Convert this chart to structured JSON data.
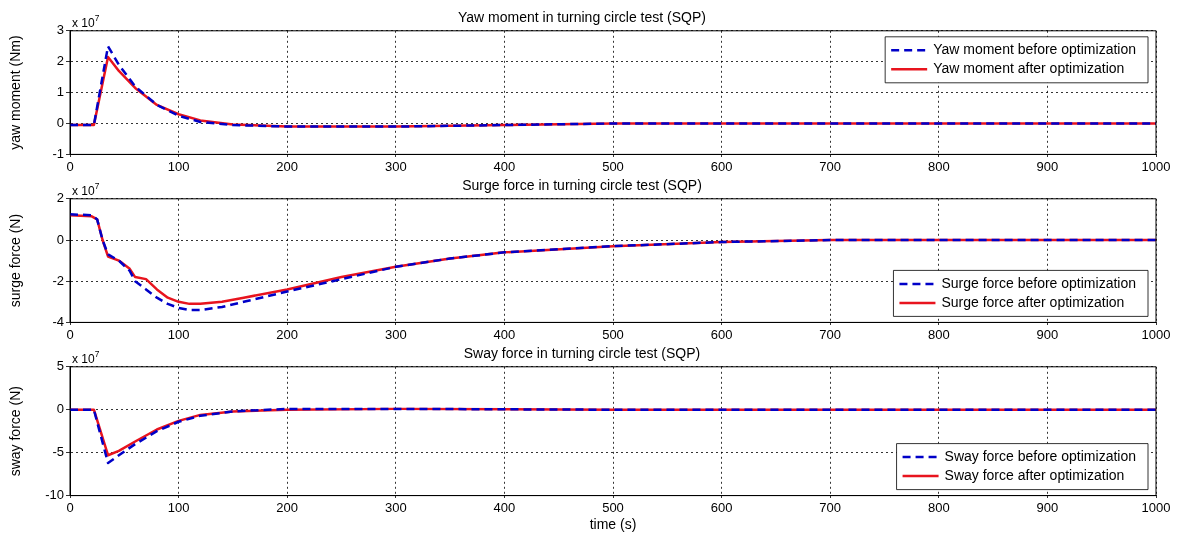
{
  "chart_data": [
    {
      "type": "line",
      "title": "Yaw moment in turning circle test (SQP)",
      "ylabel": "yaw moment (Nm)",
      "annotations": [
        "x 10$^{7}$"
      ],
      "xlim": [
        0,
        1000
      ],
      "xticks": [
        0,
        100,
        200,
        300,
        400,
        500,
        600,
        700,
        800,
        900,
        1000
      ],
      "ylim": [
        -1,
        3
      ],
      "yticks": [
        -1,
        0,
        1,
        2,
        3
      ],
      "grid": true,
      "legend": "top right",
      "series": [
        {
          "name": "Yaw moment before optimization",
          "color": "#0000c8",
          "line_style": "dashed",
          "x": [
            0,
            22,
            35,
            45,
            60,
            80,
            100,
            120,
            150,
            200,
            300,
            400,
            500,
            1000
          ],
          "values": [
            -0.05,
            -0.05,
            2.5,
            1.9,
            1.2,
            0.6,
            0.25,
            0.05,
            -0.05,
            -0.1,
            -0.1,
            -0.05,
            0,
            0
          ]
        },
        {
          "name": "Yaw moment after optimization",
          "color": "#e8141e",
          "line_style": "solid",
          "x": [
            0,
            22,
            35,
            45,
            60,
            80,
            100,
            120,
            150,
            200,
            300,
            400,
            500,
            1000
          ],
          "values": [
            -0.05,
            -0.05,
            2.15,
            1.7,
            1.15,
            0.6,
            0.3,
            0.1,
            -0.03,
            -0.1,
            -0.1,
            -0.05,
            0,
            0
          ]
        }
      ]
    },
    {
      "type": "line",
      "title": "Surge force in turning circle test (SQP)",
      "ylabel": "surge force (N)",
      "annotations": [
        "x 10$^{7}$"
      ],
      "xlim": [
        0,
        1000
      ],
      "xticks": [
        0,
        100,
        200,
        300,
        400,
        500,
        600,
        700,
        800,
        900,
        1000
      ],
      "ylim": [
        -4,
        2
      ],
      "yticks": [
        -4,
        -2,
        0,
        2
      ],
      "grid": true,
      "legend": "bottom right",
      "series": [
        {
          "name": "Surge force before optimization",
          "color": "#0000c8",
          "line_style": "dashed",
          "x": [
            0,
            20,
            25,
            30,
            35,
            45,
            55,
            60,
            70,
            80,
            90,
            100,
            110,
            120,
            140,
            160,
            200,
            250,
            300,
            350,
            400,
            500,
            600,
            700,
            800,
            1000
          ],
          "values": [
            1.25,
            1.2,
            1.0,
            0,
            -0.7,
            -1.0,
            -1.5,
            -2.0,
            -2.4,
            -2.8,
            -3.1,
            -3.3,
            -3.4,
            -3.4,
            -3.25,
            -3.0,
            -2.5,
            -1.9,
            -1.3,
            -0.9,
            -0.6,
            -0.3,
            -0.1,
            0,
            0,
            0
          ]
        },
        {
          "name": "Surge force after optimization",
          "color": "#e8141e",
          "line_style": "solid",
          "x": [
            0,
            20,
            25,
            30,
            35,
            45,
            55,
            60,
            70,
            80,
            90,
            100,
            110,
            120,
            140,
            160,
            200,
            250,
            300,
            350,
            400,
            500,
            600,
            700,
            800,
            1000
          ],
          "values": [
            1.2,
            1.15,
            1.0,
            0,
            -0.8,
            -1.0,
            -1.4,
            -1.8,
            -1.9,
            -2.4,
            -2.8,
            -3.0,
            -3.1,
            -3.1,
            -3.0,
            -2.8,
            -2.4,
            -1.8,
            -1.3,
            -0.9,
            -0.6,
            -0.3,
            -0.1,
            0,
            0,
            0
          ]
        }
      ]
    },
    {
      "type": "line",
      "title": "Sway force in turning circle test (SQP)",
      "xlabel": "time (s)",
      "ylabel": "sway force (N)",
      "annotations": [
        "x 10$^{7}$"
      ],
      "xlim": [
        0,
        1000
      ],
      "xticks": [
        0,
        100,
        200,
        300,
        400,
        500,
        600,
        700,
        800,
        900,
        1000
      ],
      "ylim": [
        -10,
        5
      ],
      "yticks": [
        -10,
        -5,
        0,
        5
      ],
      "grid": true,
      "legend": "bottom right",
      "series": [
        {
          "name": "Sway force before optimization",
          "color": "#0000c8",
          "line_style": "dashed",
          "x": [
            0,
            22,
            35,
            45,
            60,
            80,
            100,
            120,
            150,
            200,
            300,
            500,
            1000
          ],
          "values": [
            0,
            0,
            -6.2,
            -5.3,
            -4,
            -2.5,
            -1.4,
            -0.7,
            -0.2,
            0.1,
            0.1,
            0,
            0
          ]
        },
        {
          "name": "Sway force after optimization",
          "color": "#e8141e",
          "line_style": "solid",
          "x": [
            0,
            22,
            35,
            45,
            60,
            80,
            100,
            120,
            150,
            200,
            300,
            500,
            1000
          ],
          "values": [
            0,
            0,
            -5.3,
            -4.8,
            -3.7,
            -2.3,
            -1.3,
            -0.6,
            -0.2,
            0,
            0.1,
            0,
            0
          ]
        }
      ]
    }
  ]
}
